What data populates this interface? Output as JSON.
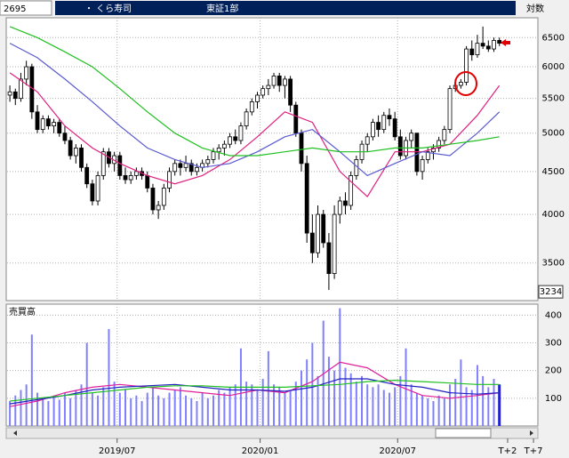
{
  "chart_data": {
    "type": "candlestick",
    "code": "2695",
    "name": "・ くら寿司",
    "market": "東証1部",
    "scale_label": "対数",
    "log_scale": true,
    "grid": true,
    "xlim": [
      -0.5,
      96
    ],
    "xticks": [
      {
        "value": 19.5,
        "label": "2019/07"
      },
      {
        "value": 45.5,
        "label": "2020/01"
      },
      {
        "value": 70.5,
        "label": "2020/07"
      },
      {
        "value": 90.5,
        "label": "T+2"
      },
      {
        "value": 95.2,
        "label": "T+7"
      }
    ],
    "ylim": [
      3180,
      6830
    ],
    "yticks": [
      3500,
      4000,
      4500,
      5000,
      5500,
      6000,
      6500
    ],
    "price_marker": 3234,
    "up_color": "#ffffff",
    "down_color": "#000000",
    "candles": [
      [
        5550,
        5700,
        5450,
        5600
      ],
      [
        5600,
        5650,
        5400,
        5500
      ],
      [
        5500,
        5900,
        5450,
        5800
      ],
      [
        5800,
        6100,
        5700,
        6000
      ],
      [
        6000,
        6050,
        5200,
        5300
      ],
      [
        5300,
        5400,
        5000,
        5050
      ],
      [
        5050,
        5250,
        5000,
        5200
      ],
      [
        5200,
        5250,
        5050,
        5100
      ],
      [
        5100,
        5200,
        5000,
        5150
      ],
      [
        5150,
        5200,
        4950,
        5000
      ],
      [
        5000,
        5100,
        4850,
        4900
      ],
      [
        4900,
        4950,
        4650,
        4700
      ],
      [
        4700,
        4850,
        4600,
        4800
      ],
      [
        4800,
        4850,
        4500,
        4550
      ],
      [
        4550,
        4600,
        4300,
        4350
      ],
      [
        4350,
        4400,
        4100,
        4150
      ],
      [
        4150,
        4500,
        4100,
        4450
      ],
      [
        4450,
        4800,
        4400,
        4750
      ],
      [
        4750,
        4800,
        4550,
        4600
      ],
      [
        4600,
        4750,
        4500,
        4700
      ],
      [
        4700,
        4750,
        4400,
        4450
      ],
      [
        4450,
        4550,
        4350,
        4400
      ],
      [
        4400,
        4500,
        4350,
        4450
      ],
      [
        4450,
        4550,
        4400,
        4500
      ],
      [
        4500,
        4550,
        4400,
        4450
      ],
      [
        4450,
        4500,
        4250,
        4300
      ],
      [
        4300,
        4350,
        4000,
        4050
      ],
      [
        4050,
        4150,
        3950,
        4100
      ],
      [
        4100,
        4350,
        4050,
        4300
      ],
      [
        4300,
        4550,
        4250,
        4500
      ],
      [
        4500,
        4650,
        4450,
        4600
      ],
      [
        4600,
        4650,
        4450,
        4550
      ],
      [
        4550,
        4700,
        4500,
        4600
      ],
      [
        4600,
        4650,
        4450,
        4500
      ],
      [
        4500,
        4600,
        4450,
        4550
      ],
      [
        4550,
        4650,
        4500,
        4600
      ],
      [
        4600,
        4700,
        4550,
        4650
      ],
      [
        4650,
        4800,
        4600,
        4750
      ],
      [
        4750,
        4850,
        4650,
        4800
      ],
      [
        4800,
        4900,
        4700,
        4850
      ],
      [
        4850,
        5000,
        4800,
        4950
      ],
      [
        4950,
        5050,
        4850,
        4900
      ],
      [
        4900,
        5150,
        4850,
        5100
      ],
      [
        5100,
        5350,
        5050,
        5300
      ],
      [
        5300,
        5500,
        5250,
        5450
      ],
      [
        5450,
        5600,
        5350,
        5550
      ],
      [
        5550,
        5700,
        5500,
        5650
      ],
      [
        5650,
        5800,
        5550,
        5700
      ],
      [
        5700,
        5900,
        5650,
        5850
      ],
      [
        5850,
        5900,
        5600,
        5700
      ],
      [
        5700,
        5850,
        5500,
        5800
      ],
      [
        5800,
        5850,
        5300,
        5400
      ],
      [
        5400,
        5450,
        4950,
        5000
      ],
      [
        5000,
        5050,
        4500,
        4600
      ],
      [
        4600,
        4700,
        3700,
        3800
      ],
      [
        3800,
        4000,
        3500,
        3600
      ],
      [
        3600,
        4100,
        3550,
        4000
      ],
      [
        4000,
        4050,
        3650,
        3700
      ],
      [
        3700,
        3800,
        3250,
        3400
      ],
      [
        3400,
        4100,
        3350,
        4000
      ],
      [
        4000,
        4200,
        3900,
        4150
      ],
      [
        4150,
        4250,
        4000,
        4100
      ],
      [
        4100,
        4500,
        4050,
        4450
      ],
      [
        4450,
        4700,
        4400,
        4650
      ],
      [
        4650,
        4900,
        4600,
        4850
      ],
      [
        4850,
        5000,
        4750,
        4950
      ],
      [
        4950,
        5200,
        4900,
        5150
      ],
      [
        5150,
        5250,
        4950,
        5050
      ],
      [
        5050,
        5300,
        5000,
        5250
      ],
      [
        5250,
        5350,
        5100,
        5200
      ],
      [
        5200,
        5300,
        4900,
        4950
      ],
      [
        4950,
        5050,
        4650,
        4700
      ],
      [
        4700,
        4950,
        4650,
        4900
      ],
      [
        4900,
        5050,
        4800,
        5000
      ],
      [
        5000,
        5000,
        4450,
        4500
      ],
      [
        4500,
        4700,
        4400,
        4650
      ],
      [
        4650,
        4800,
        4600,
        4750
      ],
      [
        4750,
        4850,
        4650,
        4800
      ],
      [
        4800,
        4950,
        4750,
        4900
      ],
      [
        4900,
        5100,
        4850,
        5050
      ],
      [
        5050,
        5700,
        5000,
        5650
      ],
      [
        5650,
        5800,
        5600,
        5700
      ],
      [
        5700,
        5800,
        5650,
        5750
      ],
      [
        5750,
        6350,
        5700,
        6300
      ],
      [
        6300,
        6450,
        6100,
        6200
      ],
      [
        6200,
        6550,
        6150,
        6400
      ],
      [
        6400,
        6700,
        6300,
        6350
      ],
      [
        6350,
        6450,
        6250,
        6300
      ],
      [
        6300,
        6500,
        6250,
        6450
      ],
      [
        6450,
        6500,
        6350,
        6400
      ]
    ],
    "moving_averages": [
      {
        "color": "#e0207f",
        "x": [
          0,
          5,
          10,
          15,
          20,
          25,
          30,
          35,
          40,
          45,
          50,
          55,
          60,
          65,
          70,
          75,
          80,
          85,
          89
        ],
        "values": [
          5900,
          5600,
          5100,
          4800,
          4600,
          4450,
          4350,
          4450,
          4650,
          4950,
          5300,
          5150,
          4500,
          4200,
          4750,
          4750,
          4850,
          5250,
          5700
        ]
      },
      {
        "color": "#5a5ad0",
        "x": [
          0,
          5,
          10,
          15,
          20,
          25,
          30,
          35,
          40,
          45,
          50,
          55,
          60,
          65,
          70,
          75,
          80,
          85,
          89
        ],
        "values": [
          6400,
          6150,
          5800,
          5450,
          5100,
          4800,
          4650,
          4550,
          4600,
          4750,
          4950,
          5050,
          4750,
          4450,
          4600,
          4750,
          4700,
          5000,
          5300
        ]
      },
      {
        "color": "#20c020",
        "x": [
          0,
          5,
          10,
          15,
          20,
          25,
          30,
          35,
          40,
          45,
          50,
          55,
          60,
          65,
          70,
          75,
          80,
          85,
          89
        ],
        "values": [
          6700,
          6500,
          6250,
          6000,
          5650,
          5300,
          5000,
          4800,
          4700,
          4700,
          4750,
          4800,
          4750,
          4750,
          4800,
          4800,
          4850,
          4900,
          4950
        ]
      }
    ],
    "volume": {
      "title": "売買高",
      "ylim": [
        0,
        430
      ],
      "yticks": [
        100,
        200,
        300,
        400
      ],
      "color": "#8080ff",
      "last_color": "#2020d0",
      "values": [
        90,
        110,
        130,
        150,
        330,
        120,
        100,
        90,
        110,
        95,
        120,
        100,
        130,
        150,
        300,
        120,
        110,
        140,
        350,
        160,
        120,
        130,
        100,
        110,
        90,
        120,
        140,
        110,
        100,
        120,
        130,
        140,
        110,
        100,
        90,
        120,
        100,
        110,
        130,
        120,
        140,
        150,
        280,
        160,
        150,
        130,
        170,
        270,
        150,
        140,
        120,
        130,
        160,
        200,
        240,
        300,
        180,
        380,
        250,
        200,
        425,
        210,
        190,
        160,
        180,
        150,
        140,
        150,
        130,
        120,
        140,
        180,
        280,
        150,
        120,
        110,
        100,
        90,
        110,
        100,
        150,
        170,
        240,
        140,
        130,
        220,
        180,
        140,
        170,
        150
      ],
      "moving_averages": [
        {
          "color": "#e0209a",
          "x": [
            0,
            5,
            10,
            15,
            20,
            25,
            30,
            35,
            40,
            45,
            50,
            55,
            60,
            65,
            70,
            75,
            80,
            85,
            89
          ],
          "values": [
            70,
            90,
            120,
            140,
            150,
            140,
            130,
            120,
            110,
            130,
            120,
            160,
            230,
            210,
            150,
            110,
            100,
            110,
            120
          ]
        },
        {
          "color": "#2020c0",
          "x": [
            0,
            5,
            10,
            15,
            20,
            25,
            30,
            35,
            40,
            45,
            50,
            55,
            60,
            65,
            70,
            75,
            80,
            85,
            89
          ],
          "values": [
            80,
            95,
            110,
            130,
            140,
            145,
            150,
            140,
            130,
            130,
            125,
            140,
            170,
            170,
            150,
            140,
            120,
            115,
            120
          ]
        },
        {
          "color": "#20c020",
          "x": [
            0,
            5,
            10,
            15,
            20,
            25,
            30,
            35,
            40,
            45,
            50,
            55,
            60,
            65,
            70,
            75,
            80,
            85,
            89
          ],
          "values": [
            90,
            100,
            110,
            120,
            130,
            140,
            145,
            145,
            140,
            140,
            140,
            145,
            150,
            160,
            165,
            160,
            155,
            150,
            150
          ]
        }
      ]
    }
  }
}
